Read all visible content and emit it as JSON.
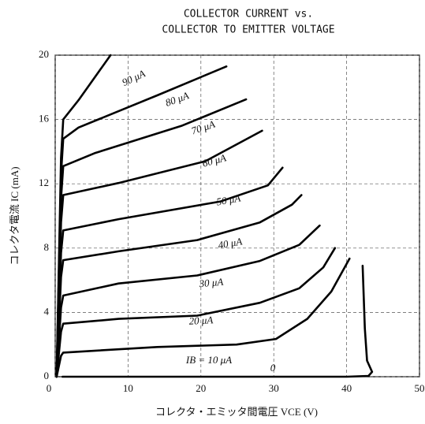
{
  "chart_data": {
    "type": "line",
    "title": "COLLECTOR CURRENT vs.",
    "subtitle": "COLLECTOR TO EMITTER VOLTAGE",
    "x_label": "コレクタ・エミッタ間電圧 VCE (V)",
    "y_label": "コレクタ電流 IC (mA)",
    "xlim": [
      0,
      50
    ],
    "xticks": [
      0,
      10,
      20,
      30,
      40,
      50
    ],
    "ylim": [
      0,
      20
    ],
    "yticks": [
      0,
      4,
      8,
      12,
      16,
      20
    ],
    "grid": true,
    "series": [
      {
        "name": "90 μA",
        "color": "#000000",
        "x": [
          0.2,
          0.8,
          1.1,
          3.2,
          7.6
        ],
        "values": [
          0,
          13.6,
          16,
          17.2,
          20
        ]
      },
      {
        "name": "80 μA",
        "color": "#000000",
        "x": [
          0.2,
          0.8,
          1.1,
          3.2,
          14,
          23.5
        ],
        "values": [
          0,
          12.6,
          14.8,
          15.5,
          17.5,
          19.3
        ]
      },
      {
        "name": "70 μA",
        "color": "#000000",
        "x": [
          0.2,
          0.8,
          1.1,
          5.4,
          17.3,
          26.2
        ],
        "values": [
          0,
          11.1,
          13.1,
          13.9,
          15.6,
          17.25
        ]
      },
      {
        "name": "60 μA",
        "color": "#000000",
        "x": [
          0.2,
          0.8,
          1.1,
          8.7,
          20.6,
          28.4
        ],
        "values": [
          0,
          9.6,
          11.3,
          12.05,
          13.4,
          15.3
        ]
      },
      {
        "name": "50 μA",
        "color": "#000000",
        "x": [
          0.2,
          0.8,
          1.1,
          8.7,
          22.7,
          29.2,
          31.2
        ],
        "values": [
          0,
          7.7,
          9.1,
          9.8,
          10.9,
          11.9,
          13.0
        ]
      },
      {
        "name": "40 μA",
        "color": "#000000",
        "x": [
          0.2,
          0.8,
          1.1,
          8.7,
          19.5,
          28.1,
          32.5,
          33.8
        ],
        "values": [
          0,
          6.2,
          7.25,
          7.8,
          8.5,
          9.6,
          10.7,
          11.3
        ]
      },
      {
        "name": "30 μA",
        "color": "#000000",
        "x": [
          0.2,
          0.8,
          1.1,
          8.7,
          19.5,
          28.1,
          33.5,
          36.3
        ],
        "values": [
          0,
          4.3,
          5.05,
          5.8,
          6.3,
          7.2,
          8.2,
          9.4
        ]
      },
      {
        "name": "20 μA",
        "color": "#000000",
        "x": [
          0.2,
          0.8,
          1.1,
          8.7,
          19.5,
          28.1,
          33.5,
          36.8,
          38.4
        ],
        "values": [
          0,
          2.8,
          3.3,
          3.6,
          3.8,
          4.6,
          5.5,
          6.8,
          8.0
        ]
      },
      {
        "name": "IB = 10 μA",
        "color": "#000000",
        "x": [
          0.2,
          0.8,
          1.1,
          14,
          24.9,
          30.3,
          34.6,
          37.9,
          40.4
        ],
        "values": [
          0,
          1.3,
          1.5,
          1.85,
          2.0,
          2.35,
          3.6,
          5.3,
          7.35
        ]
      },
      {
        "name": "0",
        "color": "#000000",
        "x": [
          42.2,
          42.5,
          42.8,
          43.5,
          43,
          40,
          1
        ],
        "values": [
          6.9,
          3,
          1,
          0.3,
          0.05,
          0,
          0
        ]
      }
    ]
  }
}
